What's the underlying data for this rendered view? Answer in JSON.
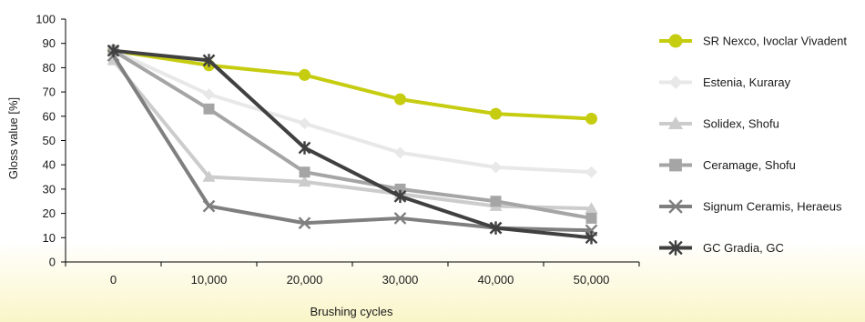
{
  "chart_data": {
    "type": "line",
    "title": "",
    "xlabel": "Brushing cycles",
    "ylabel": "Gloss value [%]",
    "categories": [
      "0",
      "10,000",
      "20,000",
      "30,000",
      "40,000",
      "50,000"
    ],
    "ylim": [
      0,
      100
    ],
    "yticks": [
      0,
      10,
      20,
      30,
      40,
      50,
      60,
      70,
      80,
      90,
      100
    ],
    "grid": false,
    "legend_position": "right",
    "series": [
      {
        "name": "SR Nexco, Ivoclar Vivadent",
        "values": [
          87,
          81,
          77,
          67,
          61,
          59
        ],
        "color": "#c6cc10",
        "marker": "circle"
      },
      {
        "name": "Estenia, Kuraray",
        "values": [
          87,
          69,
          57,
          45,
          39,
          37
        ],
        "color": "#e8e8e8",
        "marker": "diamond"
      },
      {
        "name": "Solidex, Shofu",
        "values": [
          83,
          35,
          33,
          28,
          23,
          22
        ],
        "color": "#cccccc",
        "marker": "triangle"
      },
      {
        "name": "Ceramage, Shofu",
        "values": [
          87,
          63,
          37,
          30,
          25,
          18
        ],
        "color": "#a5a5a5",
        "marker": "square"
      },
      {
        "name": "Signum Ceramis, Heraeus",
        "values": [
          85,
          23,
          16,
          18,
          14,
          13
        ],
        "color": "#7f7f7f",
        "marker": "x"
      },
      {
        "name": "GC Gradia, GC",
        "values": [
          87,
          83,
          47,
          27,
          14,
          10
        ],
        "color": "#404040",
        "marker": "star"
      }
    ]
  }
}
